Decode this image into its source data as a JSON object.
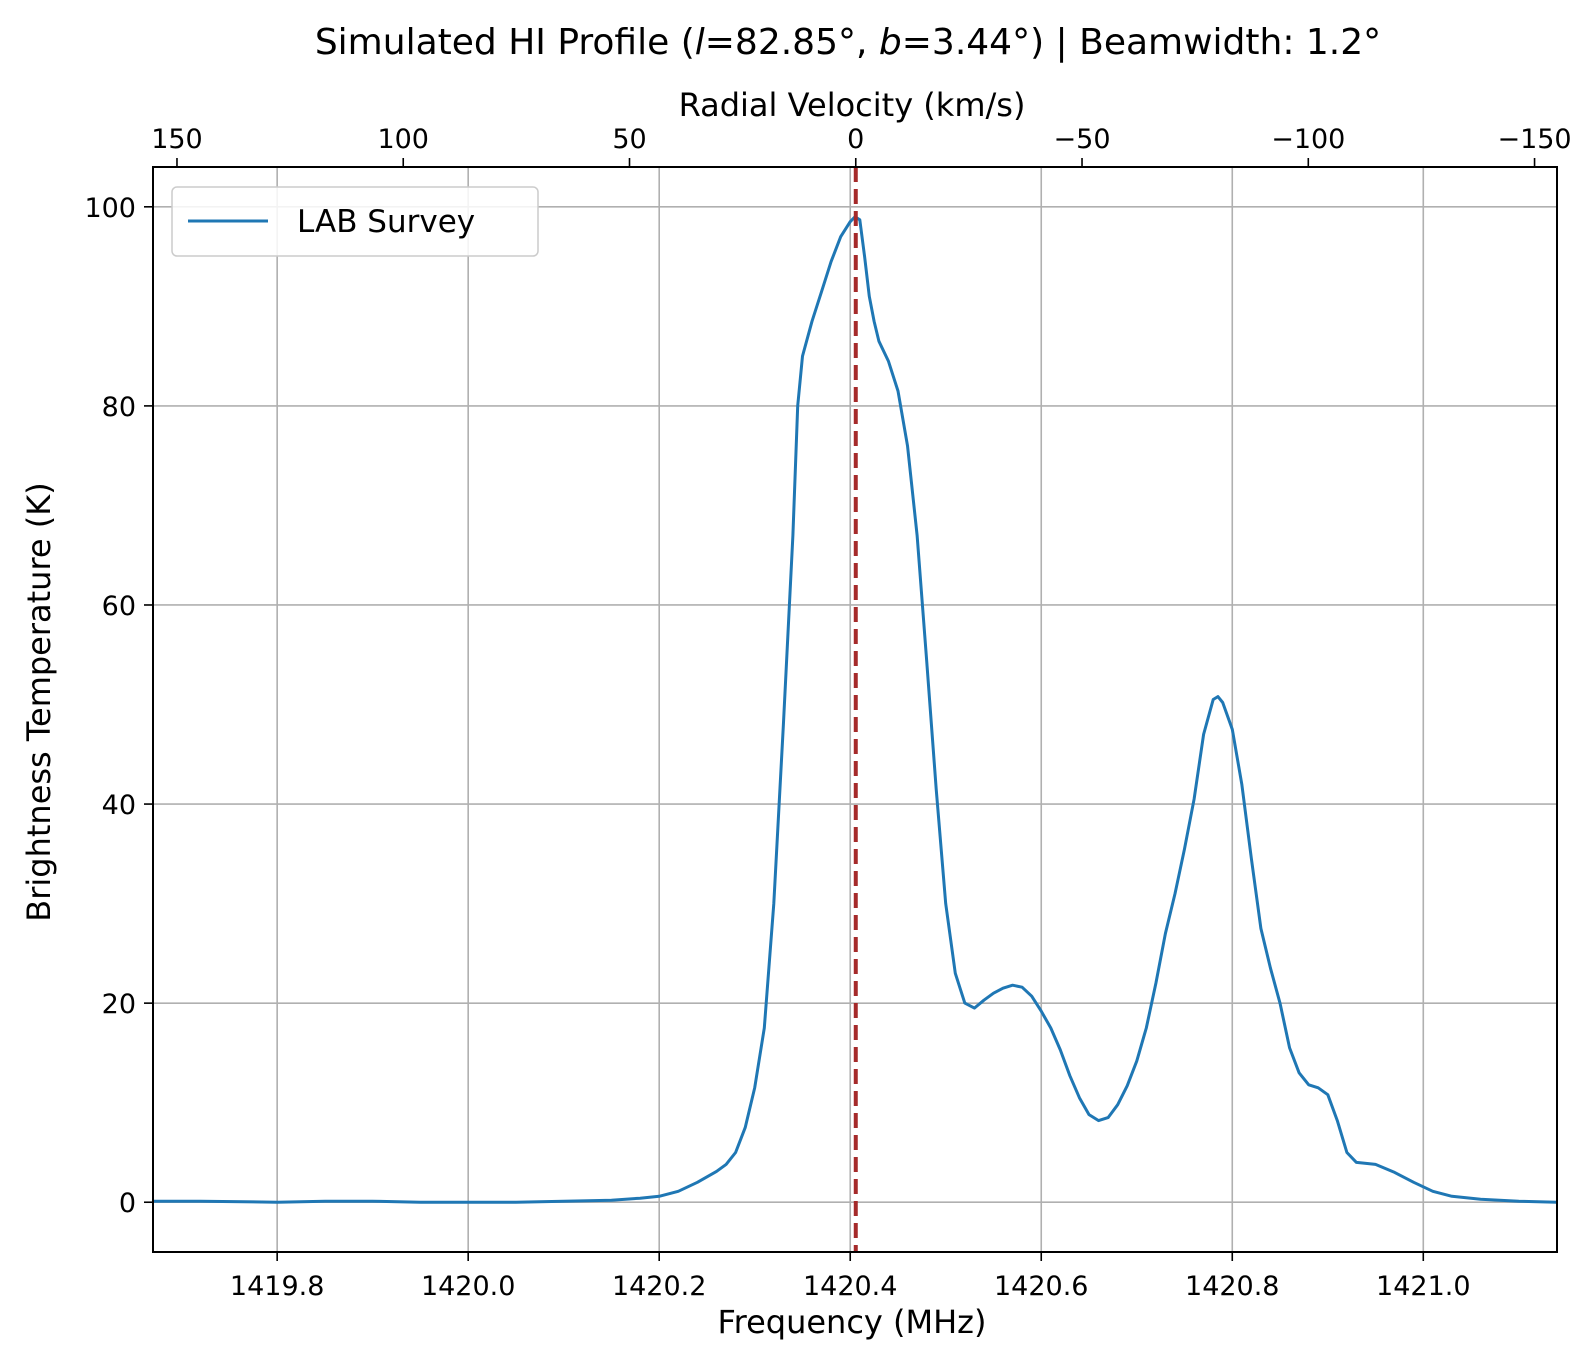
{
  "chart_data": {
    "type": "line",
    "title": "Simulated HI Profile (l=82.85°, b=3.44°) | Beamwidth: 1.2°",
    "title_parts": {
      "prefix": "Simulated HI Profile (",
      "l_symbol": "l",
      "l_value": "=82.85°, ",
      "b_symbol": "b",
      "b_value": "=3.44°) | Beamwidth: 1.2°"
    },
    "xlabel": "Frequency (MHz)",
    "ylabel": "Brightness Temperature (K)",
    "x2label": "Radial Velocity (km/s)",
    "xlim": [
      1419.67,
      1421.14
    ],
    "ylim": [
      -5,
      104
    ],
    "grid": true,
    "legend_position": "upper-left",
    "xticks": [
      {
        "value": 1419.8,
        "label": "1419.8"
      },
      {
        "value": 1420.0,
        "label": "1420.0"
      },
      {
        "value": 1420.2,
        "label": "1420.2"
      },
      {
        "value": 1420.4,
        "label": "1420.4"
      },
      {
        "value": 1420.6,
        "label": "1420.6"
      },
      {
        "value": 1420.8,
        "label": "1420.8"
      },
      {
        "value": 1421.0,
        "label": "1421.0"
      }
    ],
    "yticks": [
      {
        "value": 0,
        "label": "0"
      },
      {
        "value": 20,
        "label": "20"
      },
      {
        "value": 40,
        "label": "40"
      },
      {
        "value": 60,
        "label": "60"
      },
      {
        "value": 80,
        "label": "80"
      },
      {
        "value": 100,
        "label": "100"
      }
    ],
    "x2ticks": [
      {
        "value": 150,
        "label": "150"
      },
      {
        "value": 100,
        "label": "100"
      },
      {
        "value": 50,
        "label": "50"
      },
      {
        "value": 0,
        "label": "0"
      },
      {
        "value": -50,
        "label": "−50"
      },
      {
        "value": -100,
        "label": "−100"
      },
      {
        "value": -150,
        "label": "−150"
      }
    ],
    "x2_conversion": {
      "rest_frequency": 1420.4058,
      "km_s_per_mhz": -211.06
    },
    "rest_line": {
      "x": 1420.4058,
      "color": "#a52a2a",
      "style": "dashed"
    },
    "series": [
      {
        "name": "LAB Survey",
        "color": "#1f77b4",
        "points": [
          [
            1419.67,
            0.1
          ],
          [
            1419.72,
            0.1
          ],
          [
            1419.8,
            0.0
          ],
          [
            1419.85,
            0.1
          ],
          [
            1419.9,
            0.1
          ],
          [
            1419.95,
            0.0
          ],
          [
            1420.0,
            0.0
          ],
          [
            1420.05,
            0.0
          ],
          [
            1420.1,
            0.1
          ],
          [
            1420.15,
            0.2
          ],
          [
            1420.18,
            0.4
          ],
          [
            1420.2,
            0.6
          ],
          [
            1420.22,
            1.1
          ],
          [
            1420.24,
            2.0
          ],
          [
            1420.26,
            3.1
          ],
          [
            1420.27,
            3.8
          ],
          [
            1420.28,
            5.0
          ],
          [
            1420.29,
            7.5
          ],
          [
            1420.3,
            11.5
          ],
          [
            1420.31,
            17.5
          ],
          [
            1420.32,
            30.0
          ],
          [
            1420.33,
            48.0
          ],
          [
            1420.34,
            67.0
          ],
          [
            1420.345,
            80.0
          ],
          [
            1420.35,
            85.0
          ],
          [
            1420.36,
            88.5
          ],
          [
            1420.37,
            91.5
          ],
          [
            1420.38,
            94.5
          ],
          [
            1420.39,
            97.0
          ],
          [
            1420.4,
            98.5
          ],
          [
            1420.405,
            99.0
          ],
          [
            1420.41,
            98.7
          ],
          [
            1420.415,
            95.0
          ],
          [
            1420.42,
            91.0
          ],
          [
            1420.425,
            88.5
          ],
          [
            1420.43,
            86.5
          ],
          [
            1420.44,
            84.5
          ],
          [
            1420.45,
            81.5
          ],
          [
            1420.46,
            76.0
          ],
          [
            1420.47,
            67.0
          ],
          [
            1420.48,
            54.5
          ],
          [
            1420.49,
            41.5
          ],
          [
            1420.5,
            30.0
          ],
          [
            1420.51,
            23.0
          ],
          [
            1420.52,
            20.0
          ],
          [
            1420.53,
            19.5
          ],
          [
            1420.54,
            20.3
          ],
          [
            1420.55,
            21.0
          ],
          [
            1420.56,
            21.5
          ],
          [
            1420.57,
            21.8
          ],
          [
            1420.58,
            21.6
          ],
          [
            1420.59,
            20.7
          ],
          [
            1420.6,
            19.2
          ],
          [
            1420.61,
            17.5
          ],
          [
            1420.62,
            15.3
          ],
          [
            1420.63,
            12.7
          ],
          [
            1420.64,
            10.5
          ],
          [
            1420.65,
            8.8
          ],
          [
            1420.66,
            8.2
          ],
          [
            1420.67,
            8.5
          ],
          [
            1420.68,
            9.8
          ],
          [
            1420.69,
            11.7
          ],
          [
            1420.7,
            14.2
          ],
          [
            1420.71,
            17.5
          ],
          [
            1420.72,
            22.0
          ],
          [
            1420.73,
            27.0
          ],
          [
            1420.74,
            31.0
          ],
          [
            1420.75,
            35.5
          ],
          [
            1420.76,
            40.5
          ],
          [
            1420.77,
            47.0
          ],
          [
            1420.78,
            50.5
          ],
          [
            1420.785,
            50.8
          ],
          [
            1420.79,
            50.2
          ],
          [
            1420.8,
            47.5
          ],
          [
            1420.81,
            42.0
          ],
          [
            1420.82,
            34.5
          ],
          [
            1420.83,
            27.5
          ],
          [
            1420.84,
            23.5
          ],
          [
            1420.85,
            20.0
          ],
          [
            1420.86,
            15.5
          ],
          [
            1420.87,
            13.0
          ],
          [
            1420.88,
            11.8
          ],
          [
            1420.89,
            11.5
          ],
          [
            1420.9,
            10.8
          ],
          [
            1420.91,
            8.2
          ],
          [
            1420.92,
            5.0
          ],
          [
            1420.93,
            4.0
          ],
          [
            1420.94,
            3.9
          ],
          [
            1420.95,
            3.8
          ],
          [
            1420.97,
            3.0
          ],
          [
            1420.99,
            2.0
          ],
          [
            1421.01,
            1.1
          ],
          [
            1421.03,
            0.6
          ],
          [
            1421.06,
            0.3
          ],
          [
            1421.1,
            0.1
          ],
          [
            1421.14,
            0.0
          ]
        ]
      }
    ]
  }
}
